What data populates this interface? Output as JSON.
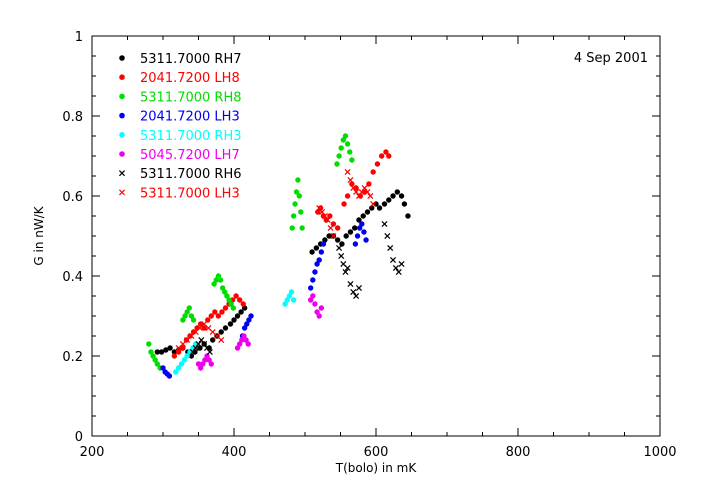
{
  "chart_data": {
    "type": "scatter",
    "date_label": "4 Sep 2001",
    "xlabel": "T(bolo) in mK",
    "ylabel": "G in nW/K",
    "xlim": [
      200,
      1000
    ],
    "ylim": [
      0,
      1
    ],
    "x_ticks": [
      "200",
      "400",
      "600",
      "800",
      "1000"
    ],
    "y_ticks": [
      "0",
      "0.2",
      "0.4",
      "0.6",
      "0.8",
      "1"
    ],
    "legend_position": "top-left",
    "grid": false,
    "series": [
      {
        "name": "5311.7000 RH7",
        "color": "#000000",
        "marker": "dot",
        "points": [
          [
            292,
            0.21
          ],
          [
            298,
            0.21
          ],
          [
            304,
            0.215
          ],
          [
            310,
            0.22
          ],
          [
            316,
            0.21
          ],
          [
            322,
            0.215
          ],
          [
            328,
            0.22
          ],
          [
            335,
            0.21
          ],
          [
            340,
            0.2
          ],
          [
            345,
            0.21
          ],
          [
            352,
            0.22
          ],
          [
            358,
            0.23
          ],
          [
            365,
            0.22
          ],
          [
            370,
            0.24
          ],
          [
            376,
            0.25
          ],
          [
            382,
            0.26
          ],
          [
            388,
            0.27
          ],
          [
            395,
            0.28
          ],
          [
            400,
            0.29
          ],
          [
            405,
            0.3
          ],
          [
            410,
            0.31
          ],
          [
            415,
            0.32
          ],
          [
            510,
            0.46
          ],
          [
            516,
            0.47
          ],
          [
            522,
            0.48
          ],
          [
            528,
            0.49
          ],
          [
            534,
            0.5
          ],
          [
            540,
            0.5
          ],
          [
            546,
            0.49
          ],
          [
            552,
            0.48
          ],
          [
            558,
            0.5
          ],
          [
            564,
            0.51
          ],
          [
            570,
            0.52
          ],
          [
            576,
            0.54
          ],
          [
            582,
            0.55
          ],
          [
            588,
            0.56
          ],
          [
            594,
            0.57
          ],
          [
            600,
            0.58
          ],
          [
            605,
            0.57
          ],
          [
            612,
            0.58
          ],
          [
            618,
            0.59
          ],
          [
            624,
            0.6
          ],
          [
            630,
            0.61
          ],
          [
            636,
            0.6
          ],
          [
            640,
            0.58
          ],
          [
            645,
            0.55
          ]
        ]
      },
      {
        "name": "2041.7200 LH8",
        "color": "#ff0000",
        "marker": "dot",
        "points": [
          [
            316,
            0.2
          ],
          [
            322,
            0.21
          ],
          [
            328,
            0.22
          ],
          [
            333,
            0.24
          ],
          [
            338,
            0.25
          ],
          [
            343,
            0.26
          ],
          [
            348,
            0.27
          ],
          [
            353,
            0.28
          ],
          [
            358,
            0.27
          ],
          [
            363,
            0.29
          ],
          [
            368,
            0.3
          ],
          [
            373,
            0.31
          ],
          [
            378,
            0.3
          ],
          [
            383,
            0.31
          ],
          [
            388,
            0.32
          ],
          [
            393,
            0.33
          ],
          [
            398,
            0.34
          ],
          [
            403,
            0.35
          ],
          [
            408,
            0.34
          ],
          [
            413,
            0.33
          ],
          [
            518,
            0.56
          ],
          [
            522,
            0.57
          ],
          [
            526,
            0.55
          ],
          [
            530,
            0.54
          ],
          [
            535,
            0.55
          ],
          [
            540,
            0.53
          ],
          [
            546,
            0.52
          ],
          [
            555,
            0.58
          ],
          [
            560,
            0.6
          ],
          [
            566,
            0.63
          ],
          [
            572,
            0.62
          ],
          [
            578,
            0.6
          ],
          [
            584,
            0.61
          ],
          [
            590,
            0.63
          ],
          [
            596,
            0.66
          ],
          [
            602,
            0.68
          ],
          [
            608,
            0.7
          ],
          [
            614,
            0.71
          ],
          [
            618,
            0.7
          ]
        ]
      },
      {
        "name": "5311.7000 RH8",
        "color": "#00dd00",
        "marker": "dot",
        "points": [
          [
            280,
            0.23
          ],
          [
            283,
            0.21
          ],
          [
            286,
            0.2
          ],
          [
            289,
            0.19
          ],
          [
            292,
            0.18
          ],
          [
            296,
            0.17
          ],
          [
            328,
            0.29
          ],
          [
            331,
            0.3
          ],
          [
            334,
            0.31
          ],
          [
            337,
            0.32
          ],
          [
            340,
            0.3
          ],
          [
            343,
            0.29
          ],
          [
            372,
            0.38
          ],
          [
            375,
            0.39
          ],
          [
            378,
            0.4
          ],
          [
            381,
            0.39
          ],
          [
            384,
            0.37
          ],
          [
            387,
            0.36
          ],
          [
            390,
            0.35
          ],
          [
            393,
            0.34
          ],
          [
            396,
            0.33
          ],
          [
            399,
            0.32
          ],
          [
            482,
            0.52
          ],
          [
            484,
            0.55
          ],
          [
            486,
            0.58
          ],
          [
            488,
            0.61
          ],
          [
            490,
            0.64
          ],
          [
            492,
            0.6
          ],
          [
            494,
            0.56
          ],
          [
            496,
            0.52
          ],
          [
            545,
            0.68
          ],
          [
            548,
            0.7
          ],
          [
            551,
            0.72
          ],
          [
            554,
            0.74
          ],
          [
            557,
            0.75
          ],
          [
            560,
            0.73
          ],
          [
            563,
            0.71
          ],
          [
            566,
            0.69
          ]
        ]
      },
      {
        "name": "2041.7200 LH3",
        "color": "#0000ee",
        "marker": "dot",
        "points": [
          [
            300,
            0.17
          ],
          [
            303,
            0.16
          ],
          [
            306,
            0.155
          ],
          [
            309,
            0.15
          ],
          [
            412,
            0.25
          ],
          [
            415,
            0.27
          ],
          [
            418,
            0.28
          ],
          [
            421,
            0.29
          ],
          [
            424,
            0.3
          ],
          [
            508,
            0.37
          ],
          [
            511,
            0.39
          ],
          [
            514,
            0.41
          ],
          [
            517,
            0.43
          ],
          [
            520,
            0.44
          ],
          [
            523,
            0.46
          ],
          [
            526,
            0.48
          ],
          [
            571,
            0.48
          ],
          [
            574,
            0.5
          ],
          [
            577,
            0.52
          ],
          [
            580,
            0.53
          ],
          [
            583,
            0.51
          ],
          [
            586,
            0.49
          ]
        ]
      },
      {
        "name": "5311.7000 RH3",
        "color": "#00ffff",
        "marker": "dot",
        "points": [
          [
            318,
            0.16
          ],
          [
            322,
            0.17
          ],
          [
            326,
            0.18
          ],
          [
            330,
            0.19
          ],
          [
            334,
            0.2
          ],
          [
            338,
            0.21
          ],
          [
            342,
            0.22
          ],
          [
            346,
            0.23
          ],
          [
            472,
            0.33
          ],
          [
            475,
            0.34
          ],
          [
            478,
            0.35
          ],
          [
            481,
            0.36
          ],
          [
            484,
            0.34
          ]
        ]
      },
      {
        "name": "5045.7200 LH7",
        "color": "#ee00ee",
        "marker": "dot",
        "points": [
          [
            350,
            0.18
          ],
          [
            353,
            0.17
          ],
          [
            356,
            0.18
          ],
          [
            359,
            0.19
          ],
          [
            362,
            0.2
          ],
          [
            365,
            0.19
          ],
          [
            368,
            0.18
          ],
          [
            405,
            0.22
          ],
          [
            408,
            0.23
          ],
          [
            411,
            0.24
          ],
          [
            414,
            0.25
          ],
          [
            417,
            0.24
          ],
          [
            420,
            0.23
          ],
          [
            508,
            0.34
          ],
          [
            511,
            0.35
          ],
          [
            514,
            0.33
          ],
          [
            517,
            0.31
          ],
          [
            520,
            0.3
          ],
          [
            523,
            0.32
          ]
        ]
      },
      {
        "name": "5311.7000 RH6",
        "color": "#000000",
        "marker": "x",
        "points": [
          [
            342,
            0.21
          ],
          [
            346,
            0.22
          ],
          [
            350,
            0.23
          ],
          [
            354,
            0.24
          ],
          [
            358,
            0.23
          ],
          [
            362,
            0.22
          ],
          [
            366,
            0.21
          ],
          [
            548,
            0.47
          ],
          [
            551,
            0.45
          ],
          [
            554,
            0.43
          ],
          [
            557,
            0.41
          ],
          [
            560,
            0.42
          ],
          [
            564,
            0.38
          ],
          [
            568,
            0.36
          ],
          [
            572,
            0.35
          ],
          [
            576,
            0.37
          ],
          [
            612,
            0.53
          ],
          [
            616,
            0.5
          ],
          [
            620,
            0.47
          ],
          [
            624,
            0.44
          ],
          [
            628,
            0.42
          ],
          [
            632,
            0.41
          ],
          [
            636,
            0.43
          ]
        ]
      },
      {
        "name": "5311.7000 LH3",
        "color": "#ff0000",
        "marker": "x",
        "points": [
          [
            322,
            0.22
          ],
          [
            328,
            0.23
          ],
          [
            334,
            0.24
          ],
          [
            340,
            0.25
          ],
          [
            346,
            0.26
          ],
          [
            352,
            0.27
          ],
          [
            358,
            0.28
          ],
          [
            364,
            0.27
          ],
          [
            370,
            0.26
          ],
          [
            376,
            0.25
          ],
          [
            382,
            0.24
          ],
          [
            520,
            0.57
          ],
          [
            524,
            0.56
          ],
          [
            528,
            0.55
          ],
          [
            532,
            0.54
          ],
          [
            536,
            0.52
          ],
          [
            540,
            0.5
          ],
          [
            560,
            0.66
          ],
          [
            564,
            0.64
          ],
          [
            568,
            0.62
          ],
          [
            572,
            0.61
          ],
          [
            576,
            0.6
          ],
          [
            580,
            0.61
          ],
          [
            584,
            0.62
          ],
          [
            588,
            0.61
          ],
          [
            592,
            0.6
          ],
          [
            596,
            0.58
          ]
        ]
      }
    ]
  }
}
